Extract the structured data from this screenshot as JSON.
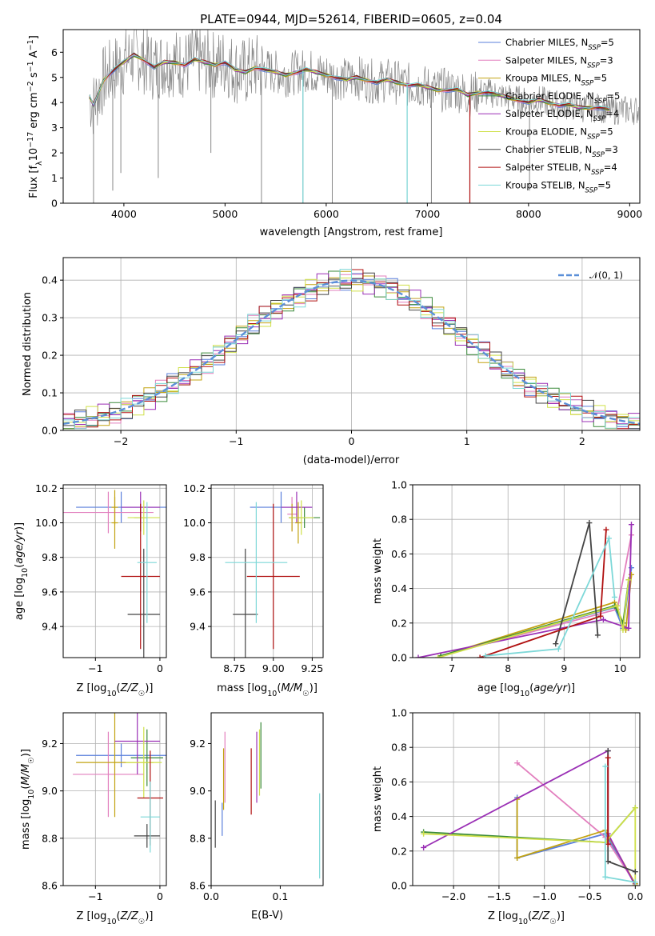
{
  "figure": {
    "title": "PLATE=0944, MJD=52614, FIBERID=0605, z=0.04"
  },
  "models": [
    {
      "name": "Chabrier MILES",
      "nssp": "5",
      "color": "#5a7fdb"
    },
    {
      "name": "Salpeter MILES",
      "nssp": "3",
      "color": "#e27fbe"
    },
    {
      "name": "Kroupa MILES",
      "nssp": "5",
      "color": "#c2a312"
    },
    {
      "name": "Chabrier ELODIE",
      "nssp": "5",
      "color": "#3a8a3a"
    },
    {
      "name": "Salpeter ELODIE",
      "nssp": "4",
      "color": "#9a2fb5"
    },
    {
      "name": "Kroupa ELODIE",
      "nssp": "5",
      "color": "#cfe04a"
    },
    {
      "name": "Chabrier STELIB",
      "nssp": "3",
      "color": "#444444"
    },
    {
      "name": "Salpeter STELIB",
      "nssp": "4",
      "color": "#b01010"
    },
    {
      "name": "Kroupa STELIB",
      "nssp": "5",
      "color": "#7dd8d8"
    }
  ],
  "chart_data": [
    {
      "id": "spectrum",
      "type": "line",
      "title": "PLATE=0944, MJD=52614, FIBERID=0605, z=0.04",
      "xlabel": "wavelength [Angstrom, rest frame]",
      "ylabel": "Flux [f_λ 10^-17 erg cm^-2 s^-1 A^-1]",
      "xlim": [
        3400,
        9100
      ],
      "ylim": [
        0,
        6.9
      ],
      "xticks": [
        4000,
        5000,
        6000,
        7000,
        8000,
        9000
      ],
      "yticks": [
        0,
        1,
        2,
        3,
        4,
        5,
        6
      ],
      "grid": false,
      "legend_placement": "right",
      "data_color": "#888888",
      "model_x": [
        3660,
        3700,
        3800,
        3900,
        4000,
        4100,
        4200,
        4300,
        4400,
        4500,
        4600,
        4700,
        4800,
        4900,
        5000,
        5100,
        5200,
        5300,
        5400,
        5500,
        5600,
        5700,
        5800,
        5900,
        6000,
        6100,
        6200,
        6300,
        6400,
        6500,
        6600,
        6700,
        6800,
        6900,
        7000,
        7100,
        7200,
        7300,
        7400,
        7500,
        7600,
        7700,
        7800,
        7900,
        8000,
        8100,
        8200,
        8300,
        8400,
        8500,
        8600,
        8700,
        8800
      ],
      "model_y": [
        4.2,
        3.9,
        4.9,
        5.3,
        5.6,
        5.9,
        5.7,
        5.4,
        5.6,
        5.6,
        5.5,
        5.7,
        5.6,
        5.5,
        5.6,
        5.3,
        5.2,
        5.4,
        5.3,
        5.2,
        5.1,
        5.2,
        5.3,
        5.2,
        5.1,
        5.0,
        4.9,
        5.0,
        4.9,
        4.8,
        4.9,
        4.8,
        4.7,
        4.7,
        4.6,
        4.5,
        4.5,
        4.5,
        4.3,
        4.4,
        4.4,
        4.3,
        4.2,
        4.1,
        4.0,
        4.1,
        4.0,
        3.9,
        3.9,
        3.8,
        3.8,
        3.8,
        3.7
      ],
      "absorption_features": [
        {
          "x": 3700,
          "y": 0
        },
        {
          "x": 3890,
          "y": 0.5
        },
        {
          "x": 3970,
          "y": 1.2
        },
        {
          "x": 4340,
          "y": 1.0
        },
        {
          "x": 4860,
          "y": 2.0
        },
        {
          "x": 5360,
          "y": 0
        },
        {
          "x": 5770,
          "y": 0
        },
        {
          "x": 6060,
          "y": 0
        },
        {
          "x": 6800,
          "y": 0
        },
        {
          "x": 7040,
          "y": 0
        },
        {
          "x": 7420,
          "y": 0
        },
        {
          "x": 8010,
          "y": 0.5
        }
      ]
    },
    {
      "id": "residual-histogram",
      "type": "step",
      "xlabel": "(data-model)/error",
      "ylabel": "Normed distribution",
      "xlim": [
        -2.5,
        2.5
      ],
      "ylim": [
        0,
        0.46
      ],
      "xticks": [
        -2,
        -1,
        0,
        1,
        2
      ],
      "yticks": [
        0.0,
        0.1,
        0.2,
        0.3,
        0.4
      ],
      "grid": true,
      "bin_width": 0.1,
      "gaussian_label": "𝒩(0, 1)",
      "gaussian_color": "#5b8fd8",
      "legend_placement": "top-right"
    },
    {
      "id": "age-vs-metallicity",
      "type": "errorbar",
      "xlabel": "Z [log10(Z/Z☉)]",
      "ylabel": "age  [log10(age/yr)]",
      "xlim": [
        -1.5,
        0.1
      ],
      "ylim": [
        9.22,
        10.22
      ],
      "xticks": [
        -1,
        0
      ],
      "yticks": [
        9.4,
        9.6,
        9.8,
        10.0,
        10.2
      ],
      "grid": true,
      "points": [
        {
          "model": 0,
          "x": -0.6,
          "y": 10.09,
          "xerr": 0.7,
          "yerr": 0.09
        },
        {
          "model": 1,
          "x": -0.8,
          "y": 10.06,
          "xerr": 0.7,
          "yerr": 0.12
        },
        {
          "model": 2,
          "x": -0.7,
          "y": 10.09,
          "xerr": 0.05,
          "yerr": 0.1
        },
        {
          "model": 3,
          "x": -0.3,
          "y": 10.03,
          "xerr": 0.1,
          "yerr": 0.08
        },
        {
          "model": 4,
          "x": -0.3,
          "y": 10.09,
          "xerr": 0.3,
          "yerr": 0.09
        },
        {
          "model": 5,
          "x": -0.25,
          "y": 10.03,
          "xerr": 0.25,
          "yerr": 0.1
        },
        {
          "model": 6,
          "x": -0.25,
          "y": 9.47,
          "xerr": 0.25,
          "yerr": 0.38
        },
        {
          "model": 7,
          "x": -0.3,
          "y": 9.69,
          "xerr": 0.3,
          "yerr": 0.42
        },
        {
          "model": 8,
          "x": -0.2,
          "y": 9.77,
          "xerr": 0.15,
          "yerr": 0.35
        },
        {
          "model": 2,
          "x": -0.7,
          "y": 10.0,
          "xerr": 0.05,
          "yerr": 0.15
        }
      ]
    },
    {
      "id": "age-vs-mass",
      "type": "errorbar",
      "xlabel": "mass [log10(M/M☉)]",
      "ylabel": "",
      "xlim": [
        8.6,
        9.32
      ],
      "ylim": [
        9.22,
        10.22
      ],
      "xticks": [
        8.75,
        9.0,
        9.25
      ],
      "yticks": [
        9.4,
        9.6,
        9.8,
        10.0,
        10.2
      ],
      "grid": true,
      "points": [
        {
          "model": 0,
          "x": 9.05,
          "y": 10.09,
          "xerr": 0.2,
          "yerr": 0.09
        },
        {
          "model": 1,
          "x": 9.12,
          "y": 10.05,
          "xerr": 0.03,
          "yerr": 0.1
        },
        {
          "model": 2,
          "x": 9.12,
          "y": 10.03,
          "xerr": 0.02,
          "yerr": 0.08
        },
        {
          "model": 3,
          "x": 9.2,
          "y": 10.03,
          "xerr": 0.1,
          "yerr": 0.06
        },
        {
          "model": 4,
          "x": 9.15,
          "y": 10.09,
          "xerr": 0.1,
          "yerr": 0.09
        },
        {
          "model": 5,
          "x": 9.18,
          "y": 10.03,
          "xerr": 0.08,
          "yerr": 0.1
        },
        {
          "model": 6,
          "x": 8.82,
          "y": 9.47,
          "xerr": 0.08,
          "yerr": 0.38
        },
        {
          "model": 7,
          "x": 9.0,
          "y": 9.69,
          "xerr": 0.17,
          "yerr": 0.42
        },
        {
          "model": 8,
          "x": 8.89,
          "y": 9.77,
          "xerr": 0.2,
          "yerr": 0.35
        },
        {
          "model": 2,
          "x": 9.16,
          "y": 10.0,
          "xerr": 0.02,
          "yerr": 0.12
        }
      ]
    },
    {
      "id": "mass-weight-vs-age",
      "type": "line",
      "xlabel": "age  [log10(age/yr)]",
      "ylabel": "mass weight",
      "xlim": [
        6.3,
        10.35
      ],
      "ylim": [
        0,
        1
      ],
      "xticks": [
        7,
        8,
        9,
        10
      ],
      "yticks": [
        0.0,
        0.2,
        0.4,
        0.6,
        0.8,
        1.0
      ],
      "grid": true,
      "series": [
        {
          "model": 0,
          "x": [
            6.8,
            9.9,
            10.05,
            10.2
          ],
          "y": [
            0.01,
            0.29,
            0.17,
            0.52
          ]
        },
        {
          "model": 1,
          "x": [
            6.8,
            9.95,
            10.2
          ],
          "y": [
            0.01,
            0.28,
            0.71
          ]
        },
        {
          "model": 2,
          "x": [
            6.8,
            9.9,
            10.1,
            10.2
          ],
          "y": [
            0.01,
            0.32,
            0.16,
            0.48
          ]
        },
        {
          "model": 3,
          "x": [
            6.8,
            9.9,
            10.05,
            10.15
          ],
          "y": [
            0.01,
            0.3,
            0.2,
            0.45
          ]
        },
        {
          "model": 4,
          "x": [
            6.4,
            9.7,
            10.15,
            10.2
          ],
          "y": [
            0.0,
            0.22,
            0.17,
            0.77
          ]
        },
        {
          "model": 5,
          "x": [
            6.75,
            9.95,
            10.05,
            10.15
          ],
          "y": [
            0.0,
            0.3,
            0.16,
            0.45
          ]
        },
        {
          "model": 6,
          "x": [
            8.85,
            9.45,
            9.6
          ],
          "y": [
            0.08,
            0.78,
            0.13
          ]
        },
        {
          "model": 7,
          "x": [
            7.5,
            9.65,
            9.75
          ],
          "y": [
            0.0,
            0.24,
            0.74
          ]
        },
        {
          "model": 8,
          "x": [
            7.6,
            8.9,
            9.8,
            9.9
          ],
          "y": [
            0.01,
            0.05,
            0.69,
            0.35
          ]
        }
      ]
    },
    {
      "id": "mass-vs-metallicity",
      "type": "errorbar",
      "xlabel": "Z [log10(Z/Z☉)]",
      "ylabel": "mass [log10(M/M☉)]",
      "xlim": [
        -1.5,
        0.1
      ],
      "ylim": [
        8.6,
        9.33
      ],
      "xticks": [
        -1,
        0
      ],
      "yticks": [
        8.6,
        8.8,
        9.0,
        9.2
      ],
      "grid": true,
      "points": [
        {
          "model": 0,
          "x": -0.6,
          "y": 9.15,
          "xerr": 0.7,
          "yerr": 0.05
        },
        {
          "model": 1,
          "x": -0.8,
          "y": 9.07,
          "xerr": 0.55,
          "yerr": 0.18
        },
        {
          "model": 2,
          "x": -0.7,
          "y": 9.12,
          "xerr": 0.6,
          "yerr": 0.23
        },
        {
          "model": 3,
          "x": -0.2,
          "y": 9.14,
          "xerr": 0.25,
          "yerr": 0.12
        },
        {
          "model": 4,
          "x": -0.35,
          "y": 9.21,
          "xerr": 0.35,
          "yerr": 0.14
        },
        {
          "model": 5,
          "x": -0.25,
          "y": 9.12,
          "xerr": 0.28,
          "yerr": 0.15
        },
        {
          "model": 6,
          "x": -0.2,
          "y": 8.81,
          "xerr": 0.2,
          "yerr": 0.05
        },
        {
          "model": 7,
          "x": -0.15,
          "y": 8.97,
          "xerr": 0.2,
          "yerr": 0.2
        },
        {
          "model": 8,
          "x": -0.15,
          "y": 8.89,
          "xerr": 0.15,
          "yerr": 0.15
        }
      ]
    },
    {
      "id": "mass-vs-extinction",
      "type": "errorbar",
      "xlabel": "E(B-V)",
      "ylabel": "",
      "xlim": [
        0,
        0.162
      ],
      "ylim": [
        8.6,
        9.33
      ],
      "xticks": [
        0.0,
        0.1
      ],
      "yticks": [
        8.6,
        8.8,
        9.0,
        9.2
      ],
      "grid": false,
      "points": [
        {
          "model": 0,
          "x": 0.016,
          "y": 8.88,
          "xerr": 0,
          "yerr": 0.07
        },
        {
          "model": 1,
          "x": 0.02,
          "y": 9.1,
          "xerr": 0,
          "yerr": 0.15
        },
        {
          "model": 2,
          "x": 0.018,
          "y": 9.05,
          "xerr": 0,
          "yerr": 0.13
        },
        {
          "model": 3,
          "x": 0.072,
          "y": 9.15,
          "xerr": 0,
          "yerr": 0.14
        },
        {
          "model": 4,
          "x": 0.066,
          "y": 9.1,
          "xerr": 0,
          "yerr": 0.15
        },
        {
          "model": 5,
          "x": 0.07,
          "y": 9.12,
          "xerr": 0,
          "yerr": 0.14
        },
        {
          "model": 6,
          "x": 0.006,
          "y": 8.86,
          "xerr": 0,
          "yerr": 0.1
        },
        {
          "model": 7,
          "x": 0.058,
          "y": 9.04,
          "xerr": 0,
          "yerr": 0.14
        },
        {
          "model": 8,
          "x": 0.157,
          "y": 8.81,
          "xerr": 0,
          "yerr": 0.18
        }
      ]
    },
    {
      "id": "mass-weight-vs-metallicity",
      "type": "line",
      "xlabel": "Z [log10(Z/Z☉)]",
      "ylabel": "mass weight",
      "xlim": [
        -2.45,
        0.05
      ],
      "ylim": [
        0,
        1
      ],
      "xticks": [
        -2.0,
        -1.5,
        -1.0,
        -0.5,
        0.0
      ],
      "yticks": [
        0.0,
        0.2,
        0.4,
        0.6,
        0.8,
        1.0
      ],
      "grid": true,
      "series": [
        {
          "model": 0,
          "x": [
            -1.3,
            -1.3,
            -0.33,
            0.0
          ],
          "y": [
            0.51,
            0.16,
            0.3,
            0.01
          ]
        },
        {
          "model": 1,
          "x": [
            -1.3,
            -0.33,
            0.0
          ],
          "y": [
            0.71,
            0.28,
            0.01
          ]
        },
        {
          "model": 2,
          "x": [
            -1.3,
            -1.3,
            -0.33,
            0.0
          ],
          "y": [
            0.5,
            0.16,
            0.32,
            0.01
          ]
        },
        {
          "model": 3,
          "x": [
            -2.33,
            -0.33,
            0.0
          ],
          "y": [
            0.31,
            0.25,
            0.45
          ]
        },
        {
          "model": 4,
          "x": [
            -2.33,
            -0.3,
            -0.3,
            0.0
          ],
          "y": [
            0.22,
            0.78,
            0.3,
            0.0
          ]
        },
        {
          "model": 5,
          "x": [
            -2.33,
            -0.33,
            0.0,
            0.0
          ],
          "y": [
            0.3,
            0.25,
            0.45,
            0.0
          ]
        },
        {
          "model": 6,
          "x": [
            -0.3,
            -0.3,
            0.0
          ],
          "y": [
            0.78,
            0.14,
            0.08
          ]
        },
        {
          "model": 7,
          "x": [
            -0.3,
            -0.3
          ],
          "y": [
            0.74,
            0.24
          ]
        },
        {
          "model": 8,
          "x": [
            -0.33,
            -0.33,
            0.0
          ],
          "y": [
            0.69,
            0.05,
            0.02
          ]
        }
      ]
    }
  ]
}
